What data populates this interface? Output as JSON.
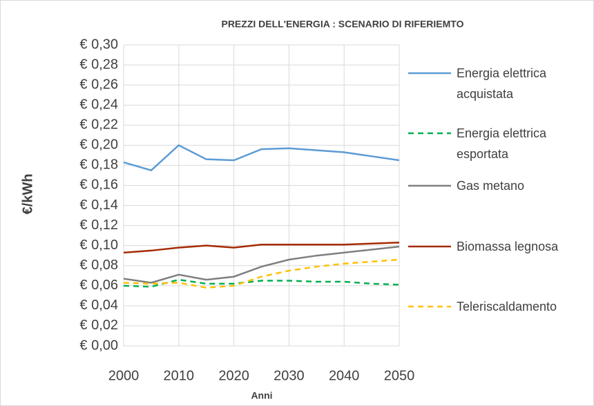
{
  "chart_data": {
    "type": "line",
    "title": "PREZZI DELL'ENERGIA : SCENARIO DI RIFERIEMTO",
    "x_label": "Anni",
    "y_label": "€/kWh",
    "x": [
      2000,
      2005,
      2010,
      2015,
      2020,
      2025,
      2030,
      2035,
      2040,
      2045,
      2050
    ],
    "xlim": [
      2000,
      2050
    ],
    "xticks": [
      2000,
      2010,
      2020,
      2030,
      2040,
      2050
    ],
    "ylim": [
      0,
      0.3
    ],
    "yticks": [
      {
        "value": 0,
        "label": "€ 0,00"
      },
      {
        "value": 0.02,
        "label": "€ 0,02"
      },
      {
        "value": 0.04,
        "label": "€ 0,04"
      },
      {
        "value": 0.06,
        "label": "€ 0,06"
      },
      {
        "value": 0.08,
        "label": "€ 0,08"
      },
      {
        "value": 0.1,
        "label": "€ 0,10"
      },
      {
        "value": 0.12,
        "label": "€ 0,12"
      },
      {
        "value": 0.14,
        "label": "€ 0,14"
      },
      {
        "value": 0.16,
        "label": "€ 0,16"
      },
      {
        "value": 0.18,
        "label": "€ 0,18"
      },
      {
        "value": 0.2,
        "label": "€ 0,20"
      },
      {
        "value": 0.22,
        "label": "€ 0,22"
      },
      {
        "value": 0.24,
        "label": "€ 0,24"
      },
      {
        "value": 0.26,
        "label": "€ 0,26"
      },
      {
        "value": 0.28,
        "label": "€ 0,28"
      },
      {
        "value": 0.3,
        "label": "€ 0,30"
      }
    ],
    "grid": true,
    "legend": "right",
    "series": [
      {
        "name": "Energia elettrica acquistata",
        "color": "#5b9bd5",
        "style": "solid",
        "values": [
          0.183,
          0.175,
          0.2,
          0.186,
          0.185,
          0.196,
          0.197,
          0.195,
          0.193,
          0.189,
          0.185
        ]
      },
      {
        "name": "Energia elettrica esportata",
        "color": "#00b050",
        "style": "dashed",
        "values": [
          0.06,
          0.059,
          0.066,
          0.062,
          0.062,
          0.065,
          0.065,
          0.064,
          0.064,
          0.062,
          0.061
        ]
      },
      {
        "name": "Gas metano",
        "color": "#7f7f7f",
        "style": "solid",
        "values": [
          0.067,
          0.063,
          0.071,
          0.066,
          0.069,
          0.079,
          0.086,
          0.09,
          0.093,
          0.096,
          0.099
        ]
      },
      {
        "name": "Biomassa legnosa",
        "color": "#a52a00",
        "style": "solid",
        "values": [
          0.093,
          0.095,
          0.098,
          0.1,
          0.098,
          0.101,
          0.101,
          0.101,
          0.101,
          0.102,
          0.103
        ]
      },
      {
        "name": "Teleriscaldamento",
        "color": "#ffc000",
        "style": "dashed",
        "values": [
          0.063,
          0.062,
          0.063,
          0.058,
          0.06,
          0.069,
          0.075,
          0.079,
          0.082,
          0.084,
          0.086
        ]
      }
    ]
  }
}
